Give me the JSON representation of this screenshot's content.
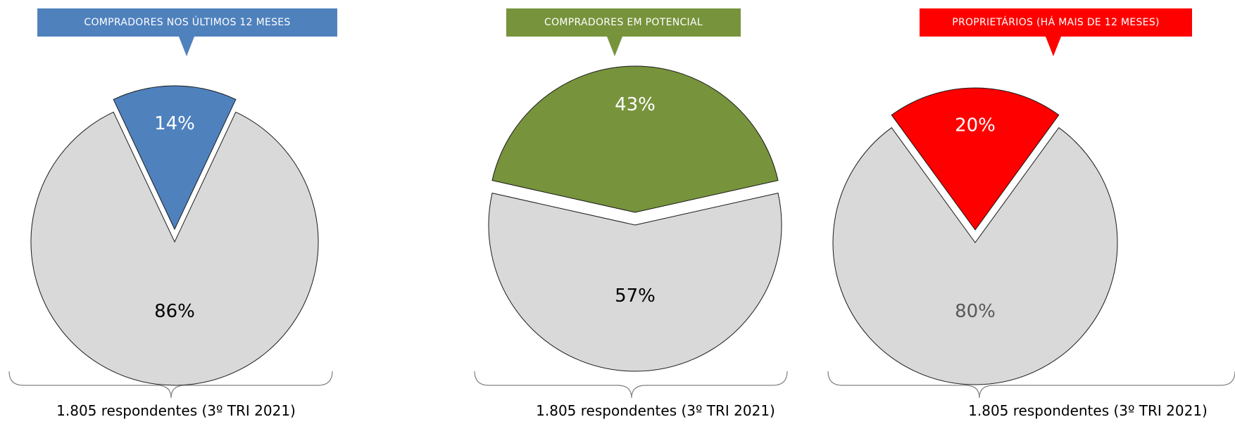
{
  "chart_data": [
    {
      "type": "pie",
      "title": "COMPRADORES NOS ÚLTIMOS 12 MESES",
      "labels": [
        "14%",
        "86%"
      ],
      "values": [
        14,
        86
      ],
      "colors": [
        "#4f81bd",
        "#d9d9d9"
      ],
      "label_colors": [
        "#ffffff",
        "#000000"
      ],
      "banner_color": "#4f81bd",
      "note": "1.805 respondentes (3º TRI 2021)"
    },
    {
      "type": "pie",
      "title": "COMPRADORES EM POTENCIAL",
      "labels": [
        "43%",
        "57%"
      ],
      "values": [
        43,
        57
      ],
      "colors": [
        "#77933c",
        "#d9d9d9"
      ],
      "label_colors": [
        "#ffffff",
        "#000000"
      ],
      "banner_color": "#77933c",
      "note": "1.805 respondentes (3º TRI 2021)"
    },
    {
      "type": "pie",
      "title": "PROPRIETÁRIOS (HÁ MAIS DE 12 MESES)",
      "labels": [
        "20%",
        "80%"
      ],
      "values": [
        20,
        80
      ],
      "colors": [
        "#ff0000",
        "#d9d9d9"
      ],
      "label_colors": [
        "#ffffff",
        "#595959"
      ],
      "banner_color": "#ff0000",
      "note": "1.805 respondentes (3º TRI 2021)"
    }
  ]
}
